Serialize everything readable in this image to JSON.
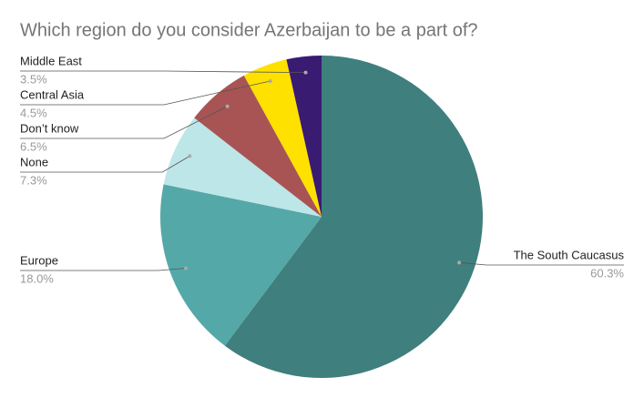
{
  "chart_data": {
    "type": "pie",
    "title": "Which region do you consider Azerbaijan to be a part of?",
    "categories": [
      "The South Caucasus",
      "Europe",
      "None",
      "Don’t know",
      "Central Asia",
      "Middle East"
    ],
    "values": [
      60.3,
      18.0,
      7.3,
      6.5,
      4.5,
      3.5
    ],
    "value_labels": [
      "60.3%",
      "18.0%",
      "7.3%",
      "6.5%",
      "4.5%",
      "3.5%"
    ],
    "colors": [
      "#3f7f7d",
      "#55a8a8",
      "#bde6e8",
      "#a85454",
      "#ffe100",
      "#391b72"
    ]
  }
}
